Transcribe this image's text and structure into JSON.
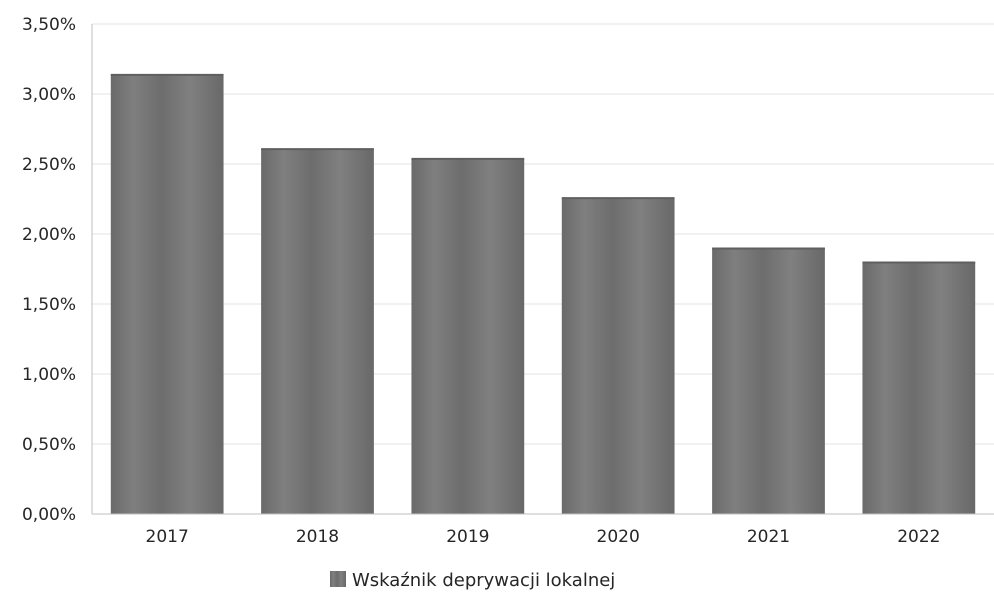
{
  "chart_data": {
    "type": "bar",
    "categories": [
      "2017",
      "2018",
      "2019",
      "2020",
      "2021",
      "2022"
    ],
    "series": [
      {
        "name": "Wskaźnik deprywacji lokalnej",
        "values": [
          3.14,
          2.61,
          2.54,
          2.26,
          1.9,
          1.8
        ]
      }
    ],
    "ylim": [
      0,
      3.5
    ],
    "yticks": [
      "0,00%",
      "0,50%",
      "1,00%",
      "1,50%",
      "2,00%",
      "2,50%",
      "3,00%",
      "3,50%"
    ],
    "ytick_values": [
      0,
      0.5,
      1.0,
      1.5,
      2.0,
      2.5,
      3.0,
      3.5
    ],
    "grid": true,
    "legend": "bottom-center",
    "colors": {
      "bar": "#767676",
      "bar_dark": "#5f5f5f",
      "bar_light": "#8a8a8a",
      "grid": "#e3e3e3",
      "axis": "#bfbfbf"
    }
  }
}
